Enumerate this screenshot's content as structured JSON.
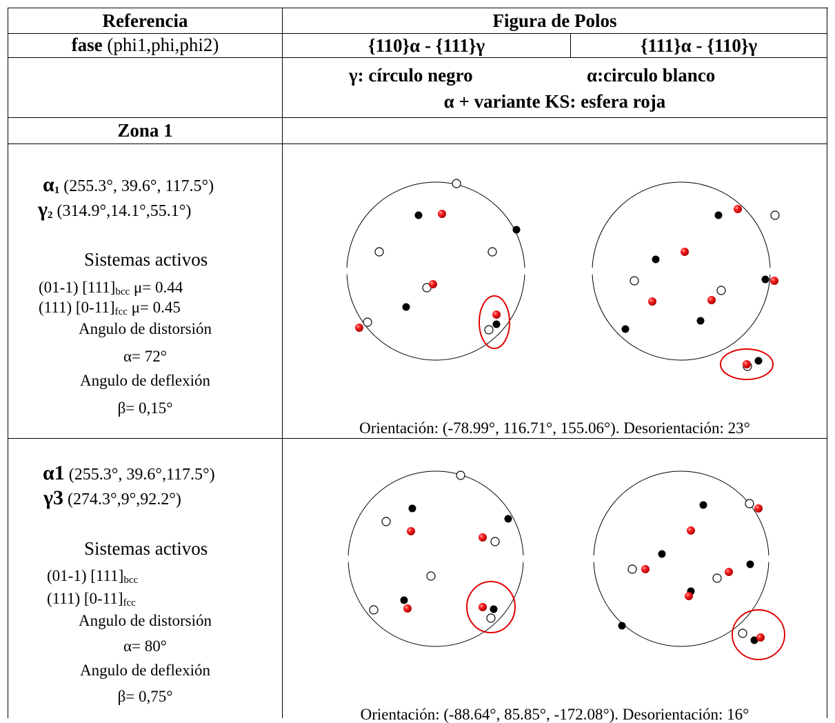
{
  "header": {
    "col1_title": "Referencia",
    "col2_title": "Figura de Polos"
  },
  "subheader": {
    "col1_bold": "fase",
    "col1_rest": " (phi1,phi,phi2)",
    "pole_fig_1": "{110}α - {111}γ",
    "pole_fig_2": "{111}α - {110}γ"
  },
  "legend": {
    "line1_a": "γ: círculo negro",
    "line1_b": "α:circulo blanco",
    "line2": "α + variante KS: esfera roja"
  },
  "zone_title": "Zona 1",
  "rows": [
    {
      "alpha_symbol": "α",
      "alpha_sub": "1",
      "alpha_angles": "(255.3°, 39.6°, 117.5°)",
      "gamma_symbol": "γ",
      "gamma_sub": "2",
      "gamma_angles": "(314.9°,14.1°,55.1°)",
      "systems_title": "Sistemas activos",
      "system_bcc_plane": "(01-1) [111]",
      "system_bcc_sub": "bcc",
      "system_bcc_mu": " μ= 0.44",
      "system_fcc_plane": "(111) [0-11]",
      "system_fcc_sub": "fcc",
      "system_fcc_mu": " μ= 0.45",
      "distortion_title": "Angulo de distorsión",
      "distortion_value": "α= 72°",
      "deflection_title": "Angulo de deflexión",
      "deflection_value": "β= 0,15°",
      "orientation": "Orientación: (-78.99°, 116.71°, 155.06°). Desorientación: 23°"
    },
    {
      "alpha_symbol": "α1",
      "alpha_angles": "(255.3°, 39.6°,117.5°)",
      "gamma_symbol": "γ3",
      "gamma_angles": "(274.3°,9°,92.2°)",
      "systems_title": "Sistemas activos",
      "system_bcc_plane": "(01-1) [111]",
      "system_bcc_sub": "bcc",
      "system_fcc_plane": "(111) [0-11]",
      "system_fcc_sub": "fcc",
      "distortion_title": "Angulo de distorsión",
      "distortion_value": "α= 80°",
      "deflection_title": "Angulo de deflexión",
      "deflection_value": "β= 0,75°",
      "orientation": "Orientación: (-88.64°, 85.85°, -172.08°). Desorientación: 16°"
    }
  ],
  "marker_colors": {
    "gamma": "#000000",
    "alpha": "#ffffff",
    "ks_variant": "#e00000",
    "highlight": "#e00000"
  }
}
